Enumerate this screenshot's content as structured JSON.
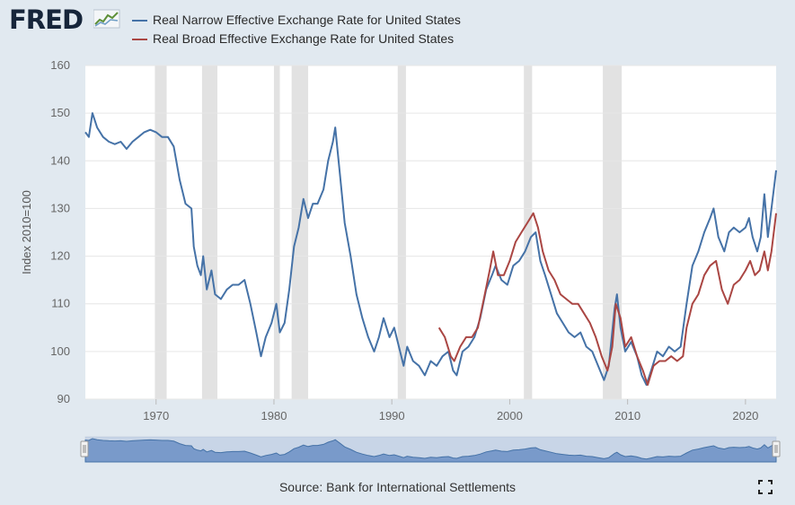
{
  "header": {
    "logo": "FRED"
  },
  "legend": [
    {
      "label": "Real Narrow Effective Exchange Rate for United States",
      "color": "#4572a7"
    },
    {
      "label": "Real Broad Effective Exchange Rate for United States",
      "color": "#aa4643"
    }
  ],
  "source": "Source: Bank for International Settlements",
  "chart_data": {
    "type": "line",
    "title": "",
    "xlabel": "",
    "ylabel": "Index 2010=100",
    "xlim": [
      1964,
      2022.6
    ],
    "ylim": [
      90,
      160
    ],
    "yticks": [
      90,
      100,
      110,
      120,
      130,
      140,
      150,
      160
    ],
    "xticks": [
      1970,
      1980,
      1990,
      2000,
      2010,
      2020
    ],
    "grid": true,
    "recessions": [
      [
        1969.9,
        1970.9
      ],
      [
        1973.9,
        1975.2
      ],
      [
        1980.0,
        1980.5
      ],
      [
        1981.5,
        1982.9
      ],
      [
        1990.5,
        1991.2
      ],
      [
        2001.2,
        2001.9
      ],
      [
        2007.9,
        2009.5
      ]
    ],
    "series": [
      {
        "name": "Real Narrow Effective Exchange Rate for United States",
        "color": "#4572a7",
        "points": [
          [
            1964.0,
            146
          ],
          [
            1964.3,
            145
          ],
          [
            1964.6,
            150
          ],
          [
            1965.0,
            147
          ],
          [
            1965.5,
            145
          ],
          [
            1966.0,
            144
          ],
          [
            1966.5,
            143.5
          ],
          [
            1967.0,
            144
          ],
          [
            1967.5,
            142.5
          ],
          [
            1968.0,
            144
          ],
          [
            1968.5,
            145
          ],
          [
            1969.0,
            146
          ],
          [
            1969.5,
            146.5
          ],
          [
            1970.0,
            146
          ],
          [
            1970.5,
            145
          ],
          [
            1971.0,
            145
          ],
          [
            1971.5,
            143
          ],
          [
            1972.0,
            136
          ],
          [
            1972.5,
            131
          ],
          [
            1973.0,
            130
          ],
          [
            1973.2,
            122
          ],
          [
            1973.5,
            118
          ],
          [
            1973.8,
            116
          ],
          [
            1974.0,
            120
          ],
          [
            1974.3,
            113
          ],
          [
            1974.7,
            117
          ],
          [
            1975.0,
            112
          ],
          [
            1975.5,
            111
          ],
          [
            1976.0,
            113
          ],
          [
            1976.5,
            114
          ],
          [
            1977.0,
            114
          ],
          [
            1977.5,
            115
          ],
          [
            1978.0,
            110
          ],
          [
            1978.5,
            104
          ],
          [
            1978.9,
            99
          ],
          [
            1979.3,
            103
          ],
          [
            1979.8,
            106
          ],
          [
            1980.2,
            110
          ],
          [
            1980.5,
            104
          ],
          [
            1980.9,
            106
          ],
          [
            1981.3,
            113
          ],
          [
            1981.7,
            122
          ],
          [
            1982.1,
            126
          ],
          [
            1982.5,
            132
          ],
          [
            1982.9,
            128
          ],
          [
            1983.3,
            131
          ],
          [
            1983.7,
            131
          ],
          [
            1984.2,
            134
          ],
          [
            1984.6,
            140
          ],
          [
            1985.0,
            144
          ],
          [
            1985.2,
            147
          ],
          [
            1985.6,
            137
          ],
          [
            1986.0,
            127
          ],
          [
            1986.5,
            120
          ],
          [
            1987.0,
            112
          ],
          [
            1987.5,
            107
          ],
          [
            1988.0,
            103
          ],
          [
            1988.5,
            100
          ],
          [
            1988.9,
            103
          ],
          [
            1989.3,
            107
          ],
          [
            1989.8,
            103
          ],
          [
            1990.2,
            105
          ],
          [
            1990.7,
            100
          ],
          [
            1991.0,
            97
          ],
          [
            1991.3,
            101
          ],
          [
            1991.8,
            98
          ],
          [
            1992.3,
            97
          ],
          [
            1992.8,
            95
          ],
          [
            1993.3,
            98
          ],
          [
            1993.8,
            97
          ],
          [
            1994.3,
            99
          ],
          [
            1994.8,
            100
          ],
          [
            1995.2,
            96
          ],
          [
            1995.5,
            95
          ],
          [
            1996.0,
            100
          ],
          [
            1996.5,
            101
          ],
          [
            1997.0,
            103
          ],
          [
            1997.5,
            107
          ],
          [
            1998.0,
            113
          ],
          [
            1998.5,
            116
          ],
          [
            1998.8,
            118
          ],
          [
            1999.3,
            115
          ],
          [
            1999.8,
            114
          ],
          [
            2000.3,
            118
          ],
          [
            2000.8,
            119
          ],
          [
            2001.3,
            121
          ],
          [
            2001.8,
            124
          ],
          [
            2002.2,
            125
          ],
          [
            2002.6,
            119
          ],
          [
            2003.0,
            116
          ],
          [
            2003.5,
            112
          ],
          [
            2004.0,
            108
          ],
          [
            2004.5,
            106
          ],
          [
            2005.0,
            104
          ],
          [
            2005.5,
            103
          ],
          [
            2006.0,
            104
          ],
          [
            2006.5,
            101
          ],
          [
            2007.0,
            100
          ],
          [
            2007.5,
            97
          ],
          [
            2008.0,
            94
          ],
          [
            2008.4,
            97
          ],
          [
            2008.9,
            109
          ],
          [
            2009.1,
            112
          ],
          [
            2009.4,
            105
          ],
          [
            2009.8,
            100
          ],
          [
            2010.3,
            102
          ],
          [
            2010.8,
            99
          ],
          [
            2011.2,
            95
          ],
          [
            2011.6,
            93
          ],
          [
            2012.0,
            96
          ],
          [
            2012.5,
            100
          ],
          [
            2013.0,
            99
          ],
          [
            2013.5,
            101
          ],
          [
            2014.0,
            100
          ],
          [
            2014.5,
            101
          ],
          [
            2015.0,
            110
          ],
          [
            2015.5,
            118
          ],
          [
            2016.0,
            121
          ],
          [
            2016.5,
            125
          ],
          [
            2017.0,
            128
          ],
          [
            2017.3,
            130
          ],
          [
            2017.7,
            124
          ],
          [
            2018.2,
            121
          ],
          [
            2018.6,
            125
          ],
          [
            2019.0,
            126
          ],
          [
            2019.5,
            125
          ],
          [
            2020.0,
            126
          ],
          [
            2020.3,
            128
          ],
          [
            2020.6,
            124
          ],
          [
            2021.0,
            121
          ],
          [
            2021.3,
            124
          ],
          [
            2021.6,
            133
          ],
          [
            2021.9,
            124
          ],
          [
            2022.2,
            130
          ],
          [
            2022.6,
            138
          ]
        ]
      },
      {
        "name": "Real Broad Effective Exchange Rate for United States",
        "color": "#aa4643",
        "points": [
          [
            1994.0,
            105
          ],
          [
            1994.5,
            103
          ],
          [
            1995.0,
            99
          ],
          [
            1995.3,
            98
          ],
          [
            1995.8,
            101
          ],
          [
            1996.3,
            103
          ],
          [
            1996.8,
            103
          ],
          [
            1997.3,
            105
          ],
          [
            1997.8,
            111
          ],
          [
            1998.3,
            117
          ],
          [
            1998.6,
            121
          ],
          [
            1999.0,
            116
          ],
          [
            1999.5,
            116
          ],
          [
            2000.0,
            119
          ],
          [
            2000.5,
            123
          ],
          [
            2001.0,
            125
          ],
          [
            2001.5,
            127
          ],
          [
            2002.0,
            129
          ],
          [
            2002.4,
            126
          ],
          [
            2002.8,
            121
          ],
          [
            2003.3,
            117
          ],
          [
            2003.8,
            115
          ],
          [
            2004.3,
            112
          ],
          [
            2004.8,
            111
          ],
          [
            2005.3,
            110
          ],
          [
            2005.8,
            110
          ],
          [
            2006.3,
            108
          ],
          [
            2006.8,
            106
          ],
          [
            2007.3,
            103
          ],
          [
            2007.8,
            99
          ],
          [
            2008.3,
            96
          ],
          [
            2008.7,
            101
          ],
          [
            2009.0,
            110
          ],
          [
            2009.4,
            107
          ],
          [
            2009.8,
            101
          ],
          [
            2010.3,
            103
          ],
          [
            2010.8,
            99
          ],
          [
            2011.3,
            96
          ],
          [
            2011.7,
            93
          ],
          [
            2012.2,
            97
          ],
          [
            2012.7,
            98
          ],
          [
            2013.2,
            98
          ],
          [
            2013.7,
            99
          ],
          [
            2014.2,
            98
          ],
          [
            2014.7,
            99
          ],
          [
            2015.0,
            105
          ],
          [
            2015.5,
            110
          ],
          [
            2016.0,
            112
          ],
          [
            2016.5,
            116
          ],
          [
            2017.0,
            118
          ],
          [
            2017.5,
            119
          ],
          [
            2018.0,
            113
          ],
          [
            2018.5,
            110
          ],
          [
            2019.0,
            114
          ],
          [
            2019.5,
            115
          ],
          [
            2020.0,
            117
          ],
          [
            2020.4,
            119
          ],
          [
            2020.8,
            116
          ],
          [
            2021.2,
            117
          ],
          [
            2021.6,
            121
          ],
          [
            2021.9,
            117
          ],
          [
            2022.2,
            121
          ],
          [
            2022.6,
            129
          ]
        ]
      }
    ]
  }
}
